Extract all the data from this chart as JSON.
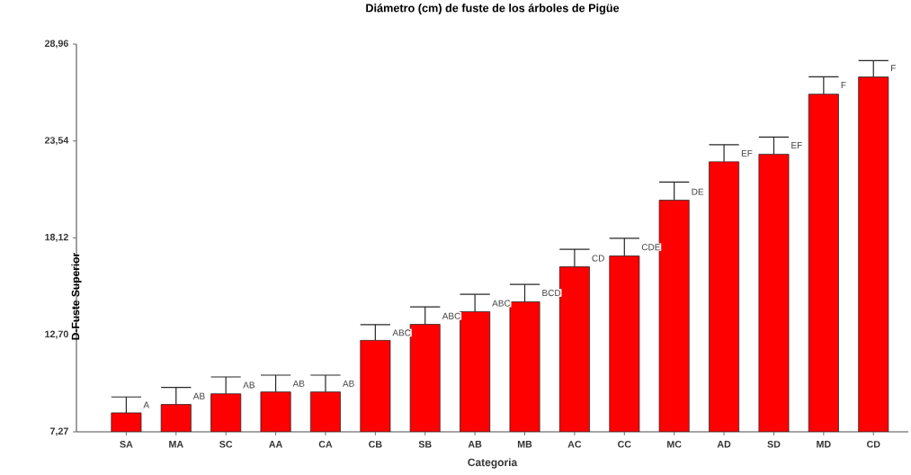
{
  "chart_data": {
    "type": "bar",
    "title": "Diámetro (cm) de fuste de los árboles de Pigüe",
    "xlabel": "Categoria",
    "ylabel": "D-Fuste Superior",
    "categories": [
      "SA",
      "MA",
      "SC",
      "AA",
      "CA",
      "CB",
      "SB",
      "AB",
      "MB",
      "AC",
      "CC",
      "MC",
      "AD",
      "SD",
      "MD",
      "CD"
    ],
    "values": [
      8.33,
      8.8,
      9.4,
      9.5,
      9.5,
      12.39,
      13.28,
      13.99,
      14.54,
      16.5,
      17.11,
      20.23,
      22.38,
      22.8,
      26.16,
      27.12
    ],
    "errors": [
      [
        8.33,
        9.22
      ],
      [
        8.8,
        9.75
      ],
      [
        9.4,
        10.34
      ],
      [
        9.5,
        10.44
      ],
      [
        9.5,
        10.44
      ],
      [
        12.39,
        13.27
      ],
      [
        13.28,
        14.26
      ],
      [
        13.99,
        14.96
      ],
      [
        14.54,
        15.52
      ],
      [
        16.5,
        17.48
      ],
      [
        17.11,
        18.1
      ],
      [
        20.23,
        21.24
      ],
      [
        22.38,
        23.33
      ],
      [
        22.8,
        23.76
      ],
      [
        26.16,
        27.13
      ],
      [
        27.12,
        28.04
      ]
    ],
    "color": "#ff0000",
    "ylim": [
      7.27,
      28.96
    ],
    "yticks": [
      {
        "value": 7.27,
        "label": "7,27"
      },
      {
        "value": 12.7,
        "label": "12,70"
      },
      {
        "value": 18.12,
        "label": "18,12"
      },
      {
        "value": 23.54,
        "label": "23,54"
      },
      {
        "value": 28.96,
        "label": "28,96"
      }
    ],
    "grid": false,
    "annotations": [
      {
        "text": "A",
        "x": "SA",
        "y": 8.78
      },
      {
        "text": "AB",
        "x": "MA",
        "y": 9.27
      },
      {
        "text": "AB",
        "x": "SC",
        "y": 9.89
      },
      {
        "text": "AB",
        "x": "AA",
        "y": 9.97
      },
      {
        "text": "AB",
        "x": "CA",
        "y": 9.97
      },
      {
        "text": "ABC",
        "x": "CB",
        "y": 12.81
      },
      {
        "text": "ABC",
        "x": "SB",
        "y": 13.75
      },
      {
        "text": "ABC",
        "x": "AB",
        "y": 14.46
      },
      {
        "text": "BCD",
        "x": "MB",
        "y": 15.04
      },
      {
        "text": "CD",
        "x": "AC",
        "y": 16.98
      },
      {
        "text": "CDE",
        "x": "CC",
        "y": 17.6
      },
      {
        "text": "DE",
        "x": "MC",
        "y": 20.7
      },
      {
        "text": "EF",
        "x": "AD",
        "y": 22.85
      },
      {
        "text": "EF",
        "x": "SD",
        "y": 23.3
      },
      {
        "text": "F",
        "x": "MD",
        "y": 26.67
      },
      {
        "text": "F",
        "x": "CD",
        "y": 27.62
      }
    ]
  }
}
